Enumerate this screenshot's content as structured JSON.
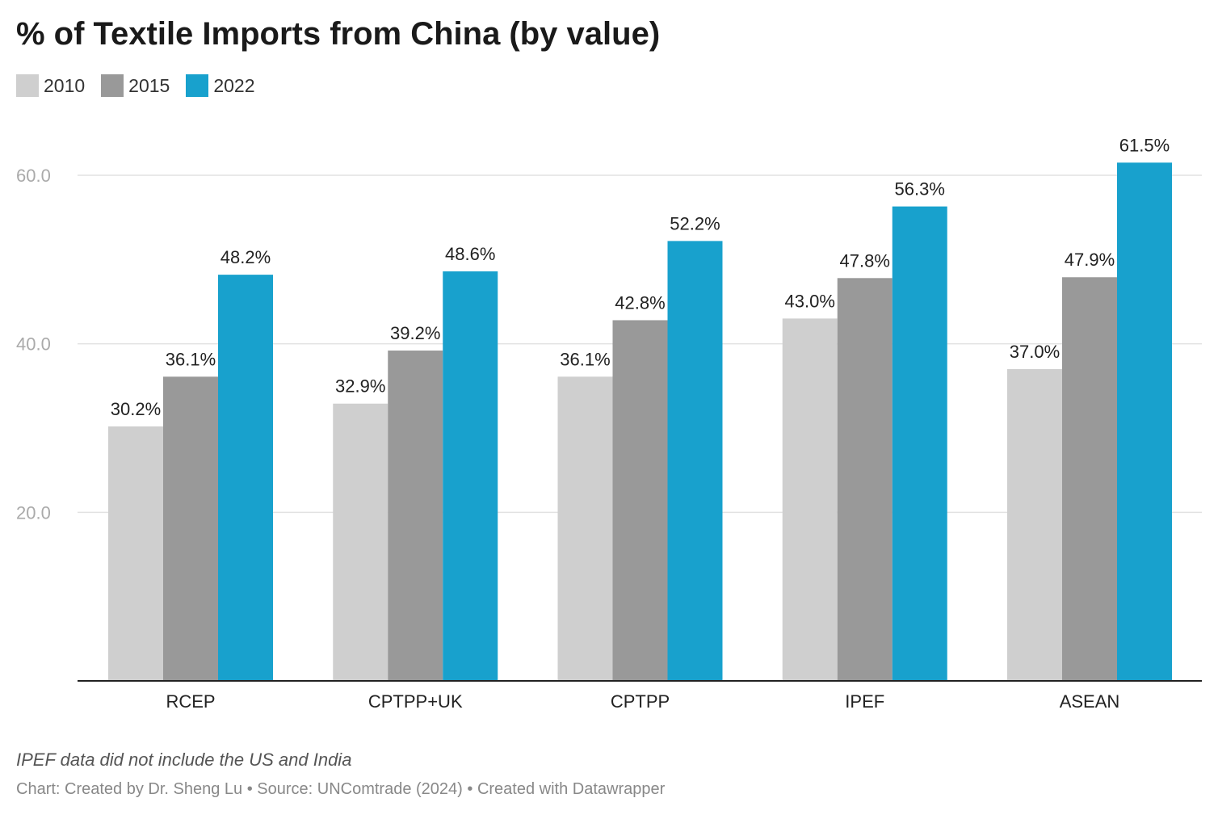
{
  "chart_data": {
    "type": "bar",
    "title": "% of Textile Imports from China (by value)",
    "categories": [
      "RCEP",
      "CPTPP+UK",
      "CPTPP",
      "IPEF",
      "ASEAN"
    ],
    "series": [
      {
        "name": "2010",
        "color": "#cfcfcf",
        "values": [
          30.2,
          32.9,
          36.1,
          43.0,
          37.0
        ],
        "labels": [
          "30.2%",
          "32.9%",
          "36.1%",
          "43.0%",
          "37.0%"
        ]
      },
      {
        "name": "2015",
        "color": "#999999",
        "values": [
          36.1,
          39.2,
          42.8,
          47.8,
          47.9
        ],
        "labels": [
          "36.1%",
          "39.2%",
          "42.8%",
          "47.8%",
          "47.9%"
        ]
      },
      {
        "name": "2022",
        "color": "#18a1cd",
        "values": [
          48.2,
          48.6,
          52.2,
          56.3,
          61.5
        ],
        "labels": [
          "48.2%",
          "48.6%",
          "52.2%",
          "56.3%",
          "61.5%"
        ]
      }
    ],
    "yticks": [
      20,
      40,
      60
    ],
    "ytick_labels": [
      "20.0",
      "40.0",
      "60.0"
    ],
    "ylim": [
      0,
      64
    ],
    "grid": true,
    "legend_position": "top-left",
    "xlabel": "",
    "ylabel": ""
  },
  "note": "IPEF data did not include the US and India",
  "source": "Chart: Created by Dr. Sheng Lu • Source: UNComtrade (2024) • Created with Datawrapper"
}
